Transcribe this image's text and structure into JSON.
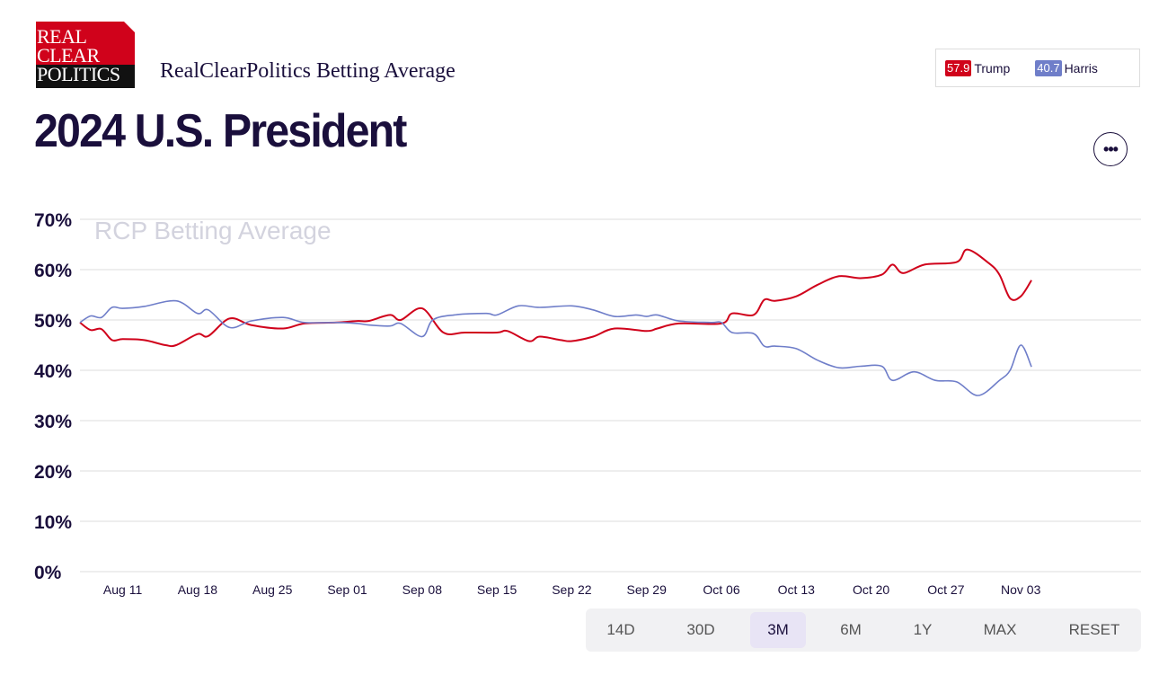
{
  "header": {
    "logo": {
      "lines": [
        "REAL",
        "CLEAR",
        "POLITICS"
      ],
      "red": "#d0021b"
    },
    "subtitle": "RealClearPolitics Betting Average",
    "title": "2024 U.S. President"
  },
  "legend": [
    {
      "value": "57.9",
      "name": "Trump",
      "color": "#d0021b"
    },
    {
      "value": "40.7",
      "name": "Harris",
      "color": "#6f7ec9"
    }
  ],
  "more_icon": "more-horizontal-icon",
  "range_buttons": [
    "14D",
    "30D",
    "3M",
    "6M",
    "1Y",
    "MAX",
    "RESET"
  ],
  "active_range": "3M",
  "chart_data": {
    "type": "line",
    "watermark": "RCP Betting Average",
    "y_ticks": [
      "70%",
      "60%",
      "50%",
      "40%",
      "30%",
      "20%",
      "10%",
      "0%"
    ],
    "ylim": [
      0,
      70
    ],
    "x_ticks": [
      "Aug 11",
      "Aug 18",
      "Aug 25",
      "Sep 01",
      "Sep 08",
      "Sep 15",
      "Sep 22",
      "Sep 29",
      "Oct 06",
      "Oct 13",
      "Oct 20",
      "Oct 27",
      "Nov 03"
    ],
    "x_start": "Aug 07",
    "x_end": "Nov 04",
    "grid": true,
    "series": [
      {
        "name": "Trump",
        "color": "#d0021b",
        "points": [
          [
            "Aug 07",
            49.5
          ],
          [
            "Aug 08",
            48.0
          ],
          [
            "Aug 09",
            48.2
          ],
          [
            "Aug 10",
            46.0
          ],
          [
            "Aug 11",
            46.2
          ],
          [
            "Aug 13",
            46.0
          ],
          [
            "Aug 15",
            45.0
          ],
          [
            "Aug 16",
            45.0
          ],
          [
            "Aug 18",
            47.2
          ],
          [
            "Aug 19",
            46.8
          ],
          [
            "Aug 21",
            50.3
          ],
          [
            "Aug 23",
            49.0
          ],
          [
            "Aug 26",
            48.3
          ],
          [
            "Aug 28",
            49.3
          ],
          [
            "Aug 31",
            49.5
          ],
          [
            "Sep 02",
            49.8
          ],
          [
            "Sep 03",
            49.8
          ],
          [
            "Sep 05",
            51.0
          ],
          [
            "Sep 06",
            50.0
          ],
          [
            "Sep 08",
            52.3
          ],
          [
            "Sep 10",
            47.5
          ],
          [
            "Sep 12",
            47.5
          ],
          [
            "Sep 15",
            47.5
          ],
          [
            "Sep 16",
            47.8
          ],
          [
            "Sep 18",
            45.8
          ],
          [
            "Sep 19",
            46.7
          ],
          [
            "Sep 21",
            46.0
          ],
          [
            "Sep 22",
            45.8
          ],
          [
            "Sep 24",
            46.7
          ],
          [
            "Sep 26",
            48.3
          ],
          [
            "Sep 29",
            47.8
          ],
          [
            "Sep 30",
            48.3
          ],
          [
            "Oct 02",
            49.3
          ],
          [
            "Oct 06",
            49.3
          ],
          [
            "Oct 07",
            51.3
          ],
          [
            "Oct 09",
            51.0
          ],
          [
            "Oct 10",
            54.0
          ],
          [
            "Oct 11",
            53.8
          ],
          [
            "Oct 13",
            54.7
          ],
          [
            "Oct 15",
            57.0
          ],
          [
            "Oct 17",
            58.7
          ],
          [
            "Oct 19",
            58.3
          ],
          [
            "Oct 21",
            59.0
          ],
          [
            "Oct 22",
            61.0
          ],
          [
            "Oct 23",
            59.3
          ],
          [
            "Oct 25",
            61.0
          ],
          [
            "Oct 28",
            61.5
          ],
          [
            "Oct 29",
            64.0
          ],
          [
            "Oct 31",
            61.3
          ],
          [
            "Nov 01",
            59.0
          ],
          [
            "Nov 02",
            54.3
          ],
          [
            "Nov 03",
            54.7
          ],
          [
            "Nov 04",
            57.9
          ]
        ]
      },
      {
        "name": "Harris",
        "color": "#6f7ec9",
        "points": [
          [
            "Aug 07",
            49.5
          ],
          [
            "Aug 08",
            50.8
          ],
          [
            "Aug 09",
            50.5
          ],
          [
            "Aug 10",
            52.5
          ],
          [
            "Aug 11",
            52.3
          ],
          [
            "Aug 13",
            52.7
          ],
          [
            "Aug 16",
            53.8
          ],
          [
            "Aug 18",
            51.3
          ],
          [
            "Aug 19",
            52.0
          ],
          [
            "Aug 21",
            48.5
          ],
          [
            "Aug 23",
            49.8
          ],
          [
            "Aug 26",
            50.5
          ],
          [
            "Aug 28",
            49.5
          ],
          [
            "Aug 31",
            49.5
          ],
          [
            "Sep 02",
            49.3
          ],
          [
            "Sep 03",
            49.0
          ],
          [
            "Sep 05",
            48.8
          ],
          [
            "Sep 06",
            49.3
          ],
          [
            "Sep 08",
            46.7
          ],
          [
            "Sep 09",
            50.0
          ],
          [
            "Sep 11",
            51.0
          ],
          [
            "Sep 14",
            51.3
          ],
          [
            "Sep 15",
            51.0
          ],
          [
            "Sep 17",
            52.8
          ],
          [
            "Sep 19",
            52.5
          ],
          [
            "Sep 22",
            52.8
          ],
          [
            "Sep 24",
            52.0
          ],
          [
            "Sep 26",
            50.7
          ],
          [
            "Sep 28",
            51.0
          ],
          [
            "Sep 29",
            50.7
          ],
          [
            "Sep 30",
            51.0
          ],
          [
            "Oct 02",
            49.8
          ],
          [
            "Oct 05",
            49.5
          ],
          [
            "Oct 06",
            49.5
          ],
          [
            "Oct 07",
            47.5
          ],
          [
            "Oct 09",
            47.3
          ],
          [
            "Oct 10",
            44.8
          ],
          [
            "Oct 11",
            44.8
          ],
          [
            "Oct 13",
            44.3
          ],
          [
            "Oct 15",
            42.0
          ],
          [
            "Oct 17",
            40.5
          ],
          [
            "Oct 19",
            40.8
          ],
          [
            "Oct 21",
            40.8
          ],
          [
            "Oct 22",
            38.0
          ],
          [
            "Oct 24",
            39.7
          ],
          [
            "Oct 26",
            38.0
          ],
          [
            "Oct 28",
            37.7
          ],
          [
            "Oct 30",
            35.0
          ],
          [
            "Nov 01",
            38.0
          ],
          [
            "Nov 02",
            40.0
          ],
          [
            "Nov 03",
            45.0
          ],
          [
            "Nov 04",
            40.7
          ]
        ]
      }
    ]
  }
}
